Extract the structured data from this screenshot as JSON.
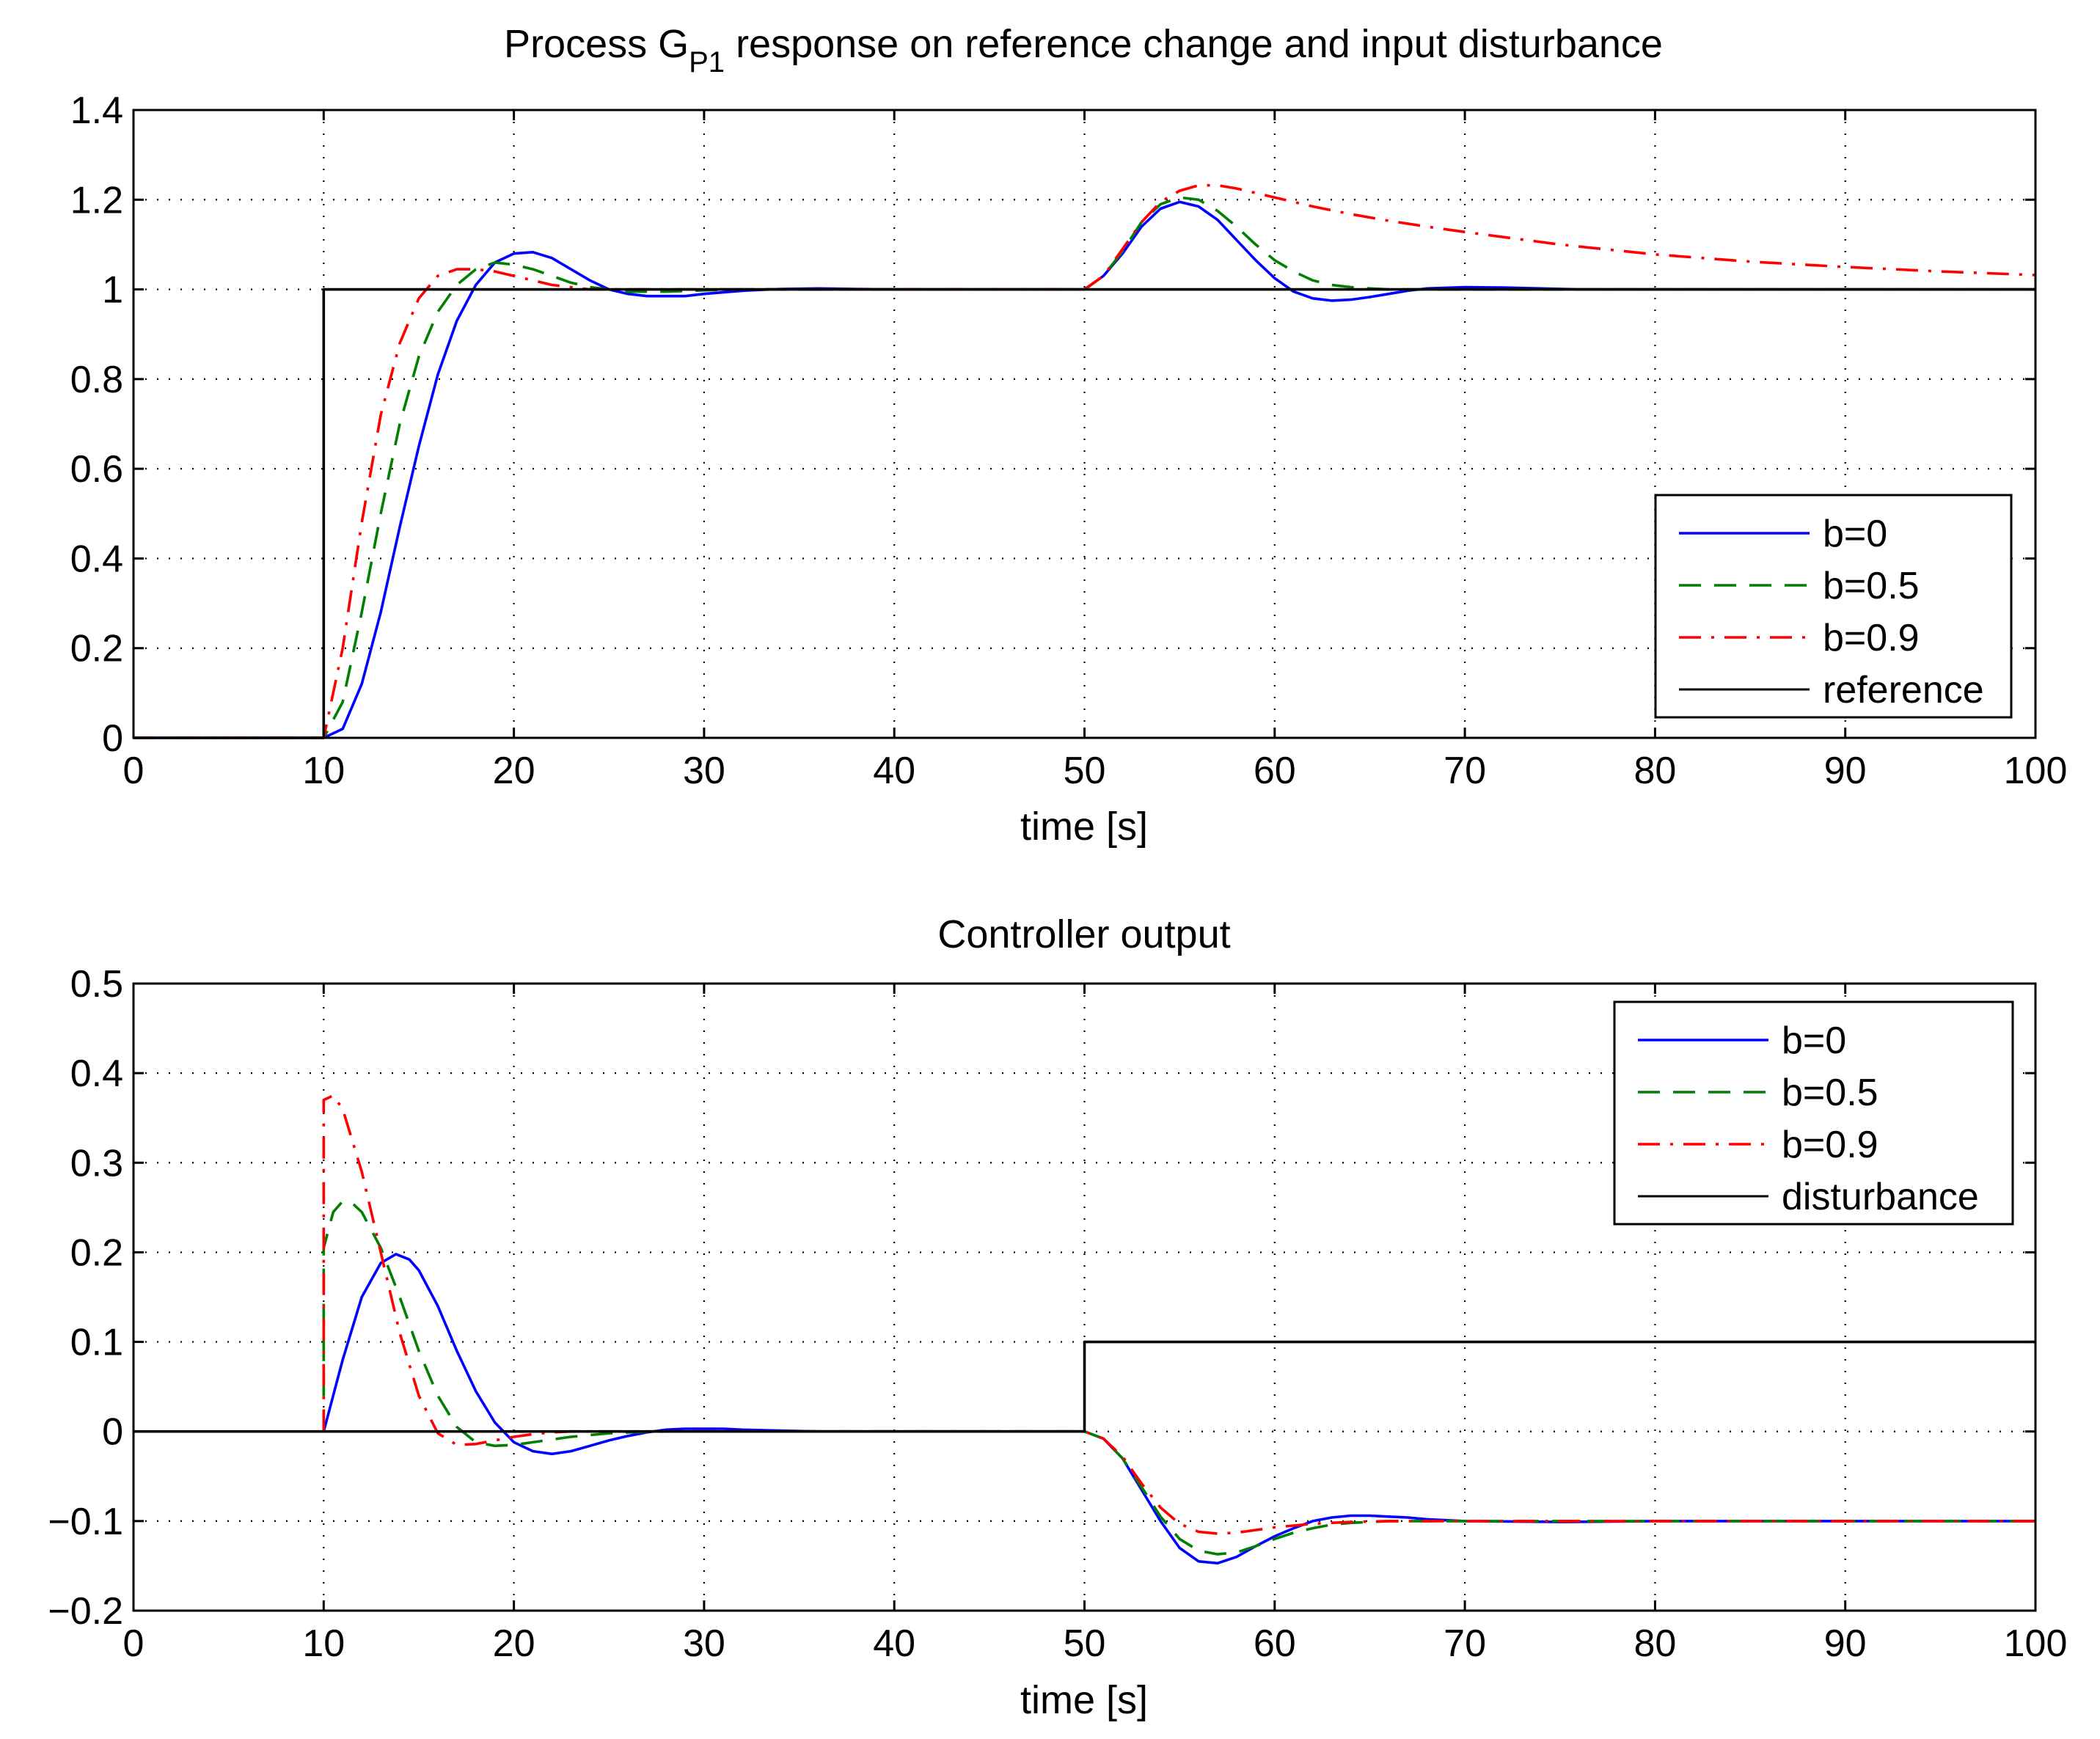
{
  "chart_data": [
    {
      "type": "line",
      "title": "Process G",
      "title_subscript": "P1",
      "title_rest": " response on reference change and input disturbance",
      "xlabel": "time [s]",
      "ylabel": "",
      "xlim": [
        0,
        100
      ],
      "ylim": [
        0,
        1.4
      ],
      "xticks": [
        0,
        10,
        20,
        30,
        40,
        50,
        60,
        70,
        80,
        90,
        100
      ],
      "yticks": [
        0,
        0.2,
        0.4,
        0.6,
        0.8,
        1,
        1.2,
        1.4
      ],
      "ytick_labels": [
        "0",
        "0.2",
        "0.4",
        "0.6",
        "0.8",
        "1",
        "1.2",
        "1.4"
      ],
      "grid": true,
      "legend_position": "right-lower",
      "series": [
        {
          "name": "b=0",
          "color": "#0000ff",
          "style": "solid",
          "x": [
            0,
            10,
            11,
            12,
            13,
            14,
            15,
            16,
            17,
            18,
            19,
            20,
            21,
            22,
            23,
            24,
            25,
            26,
            27,
            28,
            29,
            30,
            32,
            34,
            36,
            38,
            40,
            42,
            44,
            46,
            48,
            50,
            51,
            52,
            53,
            54,
            55,
            56,
            57,
            58,
            59,
            60,
            61,
            62,
            63,
            64,
            65,
            66,
            67,
            68,
            70,
            72,
            74,
            76,
            80,
            90,
            100
          ],
          "y": [
            0,
            0,
            0.02,
            0.12,
            0.28,
            0.47,
            0.65,
            0.81,
            0.93,
            1.01,
            1.06,
            1.08,
            1.083,
            1.07,
            1.045,
            1.02,
            1.0,
            0.99,
            0.985,
            0.985,
            0.985,
            0.99,
            0.997,
            1.001,
            1.002,
            1.001,
            1.0,
            1.0,
            1.0,
            1.0,
            1.0,
            1.0,
            1.03,
            1.08,
            1.14,
            1.18,
            1.195,
            1.185,
            1.155,
            1.11,
            1.065,
            1.025,
            0.995,
            0.98,
            0.975,
            0.977,
            0.983,
            0.99,
            0.997,
            1.002,
            1.005,
            1.004,
            1.002,
            1.0,
            1.0,
            1.0,
            1.0
          ]
        },
        {
          "name": "b=0.5",
          "color": "#007f00",
          "style": "dashed",
          "x": [
            0,
            10,
            11,
            12,
            13,
            14,
            15,
            16,
            17,
            18,
            19,
            20,
            21,
            22,
            23,
            24,
            25,
            26,
            27,
            28,
            30,
            32,
            34,
            36,
            40,
            50,
            51,
            52,
            53,
            54,
            55,
            56,
            57,
            58,
            59,
            60,
            61,
            62,
            63,
            64,
            65,
            66,
            68,
            70,
            75,
            80,
            90,
            100
          ],
          "y": [
            0,
            0,
            0.08,
            0.28,
            0.5,
            0.7,
            0.85,
            0.95,
            1.01,
            1.045,
            1.06,
            1.055,
            1.045,
            1.03,
            1.015,
            1.005,
            1.0,
            0.995,
            0.995,
            0.995,
            0.998,
            1.0,
            1.0,
            1.0,
            1.0,
            1.0,
            1.03,
            1.085,
            1.15,
            1.19,
            1.205,
            1.2,
            1.175,
            1.14,
            1.1,
            1.065,
            1.04,
            1.02,
            1.01,
            1.005,
            1.002,
            1.0,
            1.0,
            1.0,
            1.0,
            1.0,
            1.0,
            1.0
          ]
        },
        {
          "name": "b=0.9",
          "color": "#ff0000",
          "style": "dashdot",
          "x": [
            0,
            10,
            11,
            12,
            13,
            14,
            15,
            16,
            17,
            18,
            19,
            20,
            21,
            22,
            23,
            24,
            25,
            26,
            28,
            30,
            35,
            40,
            50,
            51,
            52,
            53,
            54,
            55,
            56,
            57,
            58,
            59,
            60,
            62,
            64,
            66,
            68,
            70,
            75,
            80,
            85,
            90,
            95,
            100
          ],
          "y": [
            0,
            0,
            0.2,
            0.48,
            0.72,
            0.88,
            0.98,
            1.03,
            1.045,
            1.045,
            1.04,
            1.03,
            1.02,
            1.01,
            1.005,
            1.0,
            1.0,
            1.0,
            1.0,
            1.0,
            1.0,
            1.0,
            1.0,
            1.03,
            1.09,
            1.15,
            1.195,
            1.22,
            1.232,
            1.232,
            1.225,
            1.215,
            1.205,
            1.185,
            1.168,
            1.153,
            1.14,
            1.128,
            1.1,
            1.078,
            1.062,
            1.05,
            1.04,
            1.032
          ]
        },
        {
          "name": "reference",
          "color": "#000000",
          "style": "solid",
          "x": [
            0,
            10,
            10,
            100
          ],
          "y": [
            0,
            0,
            1,
            1
          ]
        }
      ]
    },
    {
      "type": "line",
      "title": "Controller output",
      "xlabel": "time [s]",
      "ylabel": "",
      "xlim": [
        0,
        100
      ],
      "ylim": [
        -0.2,
        0.5
      ],
      "xticks": [
        0,
        10,
        20,
        30,
        40,
        50,
        60,
        70,
        80,
        90,
        100
      ],
      "yticks": [
        -0.2,
        -0.1,
        0,
        0.1,
        0.2,
        0.3,
        0.4,
        0.5
      ],
      "ytick_labels": [
        "−0.2",
        "−0.1",
        "0",
        "0.1",
        "0.2",
        "0.3",
        "0.4",
        "0.5"
      ],
      "grid": true,
      "legend_position": "top-right",
      "series": [
        {
          "name": "b=0",
          "color": "#0000ff",
          "style": "solid",
          "x": [
            10,
            11,
            12,
            13,
            13.8,
            14.5,
            15,
            16,
            17,
            18,
            19,
            20,
            21,
            22,
            23,
            24,
            25,
            26,
            27,
            28,
            29,
            30,
            31,
            32,
            34,
            36,
            38,
            40,
            42,
            43,
            50,
            51,
            52,
            53,
            54,
            55,
            56,
            57,
            58,
            59,
            60,
            61,
            62,
            63,
            64,
            65,
            66,
            67,
            68,
            70,
            75,
            80,
            90,
            100
          ],
          "y": [
            0,
            0.08,
            0.15,
            0.188,
            0.198,
            0.192,
            0.18,
            0.14,
            0.09,
            0.045,
            0.01,
            -0.012,
            -0.022,
            -0.025,
            -0.022,
            -0.016,
            -0.01,
            -0.005,
            -0.001,
            0.002,
            0.003,
            0.003,
            0.003,
            0.002,
            0.001,
            0.0,
            0.0,
            0.0,
            0.0,
            0.0,
            0.0,
            -0.008,
            -0.03,
            -0.065,
            -0.1,
            -0.13,
            -0.145,
            -0.147,
            -0.14,
            -0.128,
            -0.117,
            -0.108,
            -0.1,
            -0.096,
            -0.094,
            -0.094,
            -0.095,
            -0.096,
            -0.098,
            -0.1,
            -0.101,
            -0.1,
            -0.1,
            -0.1
          ]
        },
        {
          "name": "b=0.5",
          "color": "#007f00",
          "style": "dashed",
          "x": [
            10,
            10,
            10.5,
            11,
            11.5,
            12,
            13,
            14,
            15,
            16,
            17,
            18,
            19,
            20,
            21,
            22,
            23,
            24,
            25,
            26,
            28,
            30,
            35,
            40,
            42,
            50,
            51,
            52,
            53,
            54,
            55,
            56,
            57,
            58,
            59,
            60,
            61,
            62,
            63,
            64,
            65,
            66,
            68,
            70,
            75,
            80,
            90,
            100
          ],
          "y": [
            0,
            0.205,
            0.245,
            0.257,
            0.255,
            0.245,
            0.205,
            0.15,
            0.09,
            0.04,
            0.005,
            -0.012,
            -0.016,
            -0.015,
            -0.012,
            -0.009,
            -0.006,
            -0.004,
            -0.002,
            -0.001,
            0.0,
            0.0,
            0.0,
            0.0,
            0.0,
            0.0,
            -0.008,
            -0.03,
            -0.062,
            -0.095,
            -0.12,
            -0.133,
            -0.137,
            -0.135,
            -0.128,
            -0.12,
            -0.113,
            -0.108,
            -0.104,
            -0.102,
            -0.101,
            -0.1,
            -0.1,
            -0.1,
            -0.1,
            -0.1,
            -0.1,
            -0.1
          ]
        },
        {
          "name": "b=0.9",
          "color": "#ff0000",
          "style": "dashdot",
          "x": [
            10,
            10,
            10.5,
            11,
            12,
            13,
            14,
            15,
            16,
            17,
            18,
            19,
            20,
            21,
            22,
            23,
            24,
            25,
            27,
            30,
            35,
            40,
            50,
            51,
            52,
            53,
            54,
            55,
            56,
            57,
            58,
            59,
            60,
            61,
            62,
            64,
            66,
            70,
            75,
            80,
            90,
            100
          ],
          "y": [
            0,
            0.37,
            0.375,
            0.36,
            0.29,
            0.2,
            0.11,
            0.04,
            -0.002,
            -0.015,
            -0.014,
            -0.01,
            -0.006,
            -0.003,
            -0.001,
            0.0,
            0.0,
            0.0,
            0.0,
            0.0,
            0.0,
            0.0,
            0.0,
            -0.008,
            -0.028,
            -0.058,
            -0.085,
            -0.103,
            -0.112,
            -0.114,
            -0.113,
            -0.11,
            -0.107,
            -0.105,
            -0.103,
            -0.101,
            -0.1,
            -0.1,
            -0.1,
            -0.1,
            -0.1,
            -0.1
          ]
        },
        {
          "name": "disturbance",
          "color": "#000000",
          "style": "solid",
          "x": [
            0,
            50,
            50,
            100
          ],
          "y": [
            0,
            0,
            0.1,
            0.1
          ]
        }
      ]
    }
  ]
}
